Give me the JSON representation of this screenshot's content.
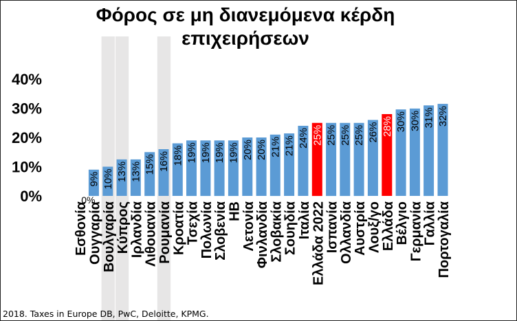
{
  "chart_data": {
    "type": "bar",
    "title": "Φόρος σε μη διανεμόμενα κέρδη επιχειρήσεων",
    "title_lines": [
      "Φόρος σε μη διανεμόμενα κέρδη",
      "επιχειρήσεων"
    ],
    "categories": [
      "Εσθονία",
      "Ουγγαρία",
      "Βουλγαρία",
      "Κύπρος",
      "Ιρλανδία",
      "Λιθουανία",
      "Ρουμανία",
      "Κροατία",
      "Τσεχία",
      "Πολωνία",
      "Σλοβενία",
      "ΗΒ",
      "Λετονία",
      "Φινλανδία",
      "Σλοβακία",
      "Σουηδία",
      "Ιταλία",
      "Ελλάδα 2022",
      "Ισπανία",
      "Ολλανδία",
      "Αυστρία",
      "Λουξ/γο",
      "Ελλάδα",
      "Βέλγιο",
      "Γερμανία",
      "Γαλλία",
      "Πορτογαλία"
    ],
    "values": [
      0,
      9,
      10,
      12.5,
      12.5,
      15,
      16,
      18,
      19,
      19,
      19,
      19,
      20,
      20,
      21,
      21.4,
      24,
      25,
      25,
      25,
      25,
      26,
      28,
      29.6,
      29.9,
      31,
      31.5
    ],
    "data_labels": [
      "0%",
      "9%",
      "10%",
      "13%",
      "13%",
      "15%",
      "16%",
      "18%",
      "19%",
      "19%",
      "19%",
      "19%",
      "20%",
      "20%",
      "21%",
      "21%",
      "24%",
      "25%",
      "25%",
      "25%",
      "25%",
      "26%",
      "28%",
      "30%",
      "30%",
      "31%",
      "32%"
    ],
    "bar_colors": [
      "#5b9bd5",
      "#5b9bd5",
      "#5b9bd5",
      "#5b9bd5",
      "#5b9bd5",
      "#5b9bd5",
      "#5b9bd5",
      "#5b9bd5",
      "#5b9bd5",
      "#5b9bd5",
      "#5b9bd5",
      "#5b9bd5",
      "#5b9bd5",
      "#5b9bd5",
      "#5b9bd5",
      "#5b9bd5",
      "#5b9bd5",
      "#ff0000",
      "#5b9bd5",
      "#5b9bd5",
      "#5b9bd5",
      "#5b9bd5",
      "#ff0000",
      "#5b9bd5",
      "#5b9bd5",
      "#5b9bd5",
      "#5b9bd5"
    ],
    "highlighted_categories": [
      "Βουλγαρία",
      "Κύπρος",
      "Ρουμανία"
    ],
    "yticks": [
      "0%",
      "10%",
      "20%",
      "30%",
      "40%"
    ],
    "ylim": [
      0,
      40
    ],
    "grid": false,
    "legend": "none",
    "xlabel": "",
    "ylabel": ""
  },
  "colors": {
    "bar": "#5b9bd5",
    "highlight_bar": "#ff0000",
    "highlight_band": "#e7e6e6"
  },
  "source": "2018. Taxes in Europe DB, PwC, Deloitte, KPMG."
}
